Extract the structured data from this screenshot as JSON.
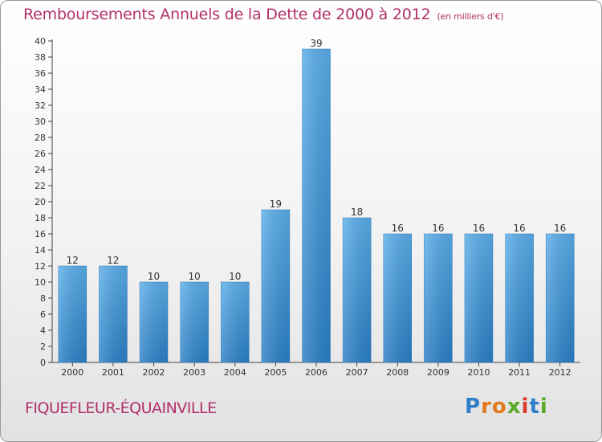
{
  "chart_data": {
    "type": "bar",
    "title": "Remboursements Annuels de la Dette de 2000 à 2012",
    "unit_note": "(en milliers d'€)",
    "categories": [
      "2000",
      "2001",
      "2002",
      "2003",
      "2004",
      "2005",
      "2006",
      "2007",
      "2008",
      "2009",
      "2010",
      "2011",
      "2012"
    ],
    "values": [
      12,
      12,
      10,
      10,
      10,
      19,
      39,
      18,
      16,
      16,
      16,
      16,
      16
    ],
    "ylim": [
      0,
      40
    ],
    "ytick_step": 2,
    "grid": false,
    "bar_color": "#3a8fd6"
  },
  "commune": "FIQUEFLEUR-ÉQUAINVILLE",
  "logo": {
    "letters": [
      {
        "ch": "P",
        "color": "#2f7fc8"
      },
      {
        "ch": "r",
        "color": "#e07a1c"
      },
      {
        "ch": "o",
        "color": "#e07a1c"
      },
      {
        "ch": "x",
        "color": "#5aaa2a"
      },
      {
        "ch": "i",
        "color": "#d93a2b"
      },
      {
        "ch": "t",
        "color": "#2f7fc8"
      },
      {
        "ch": "i",
        "color": "#5aaa2a"
      }
    ]
  }
}
